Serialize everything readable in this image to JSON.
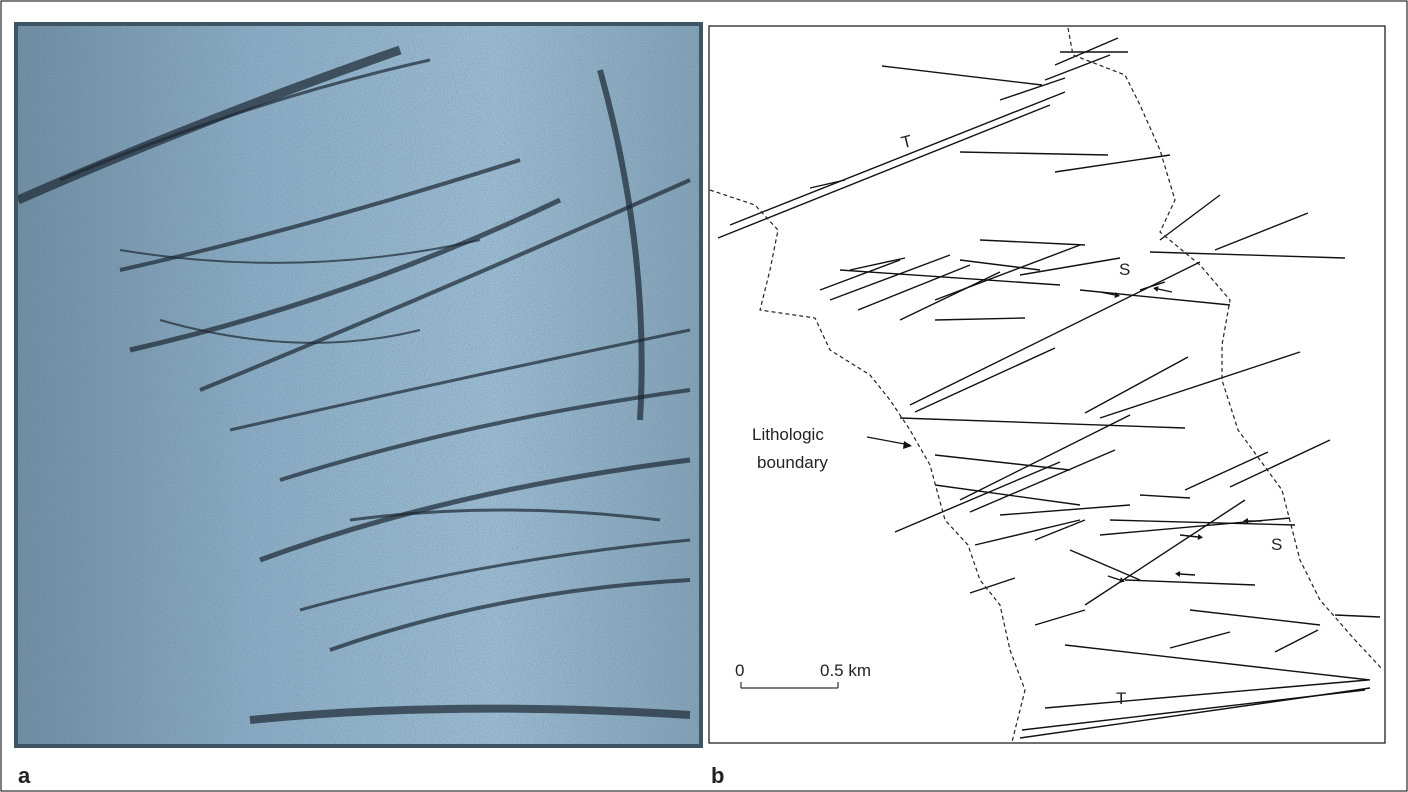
{
  "panel_a": {
    "label": "a"
  },
  "panel_b": {
    "label": "b",
    "thrust_labels": [
      "T",
      "T"
    ],
    "shear_labels": [
      "S",
      "S"
    ],
    "boundary_label": [
      "Lithologic",
      "boundary"
    ],
    "scale_bar": {
      "start": "0",
      "end": "0.5 km"
    }
  }
}
